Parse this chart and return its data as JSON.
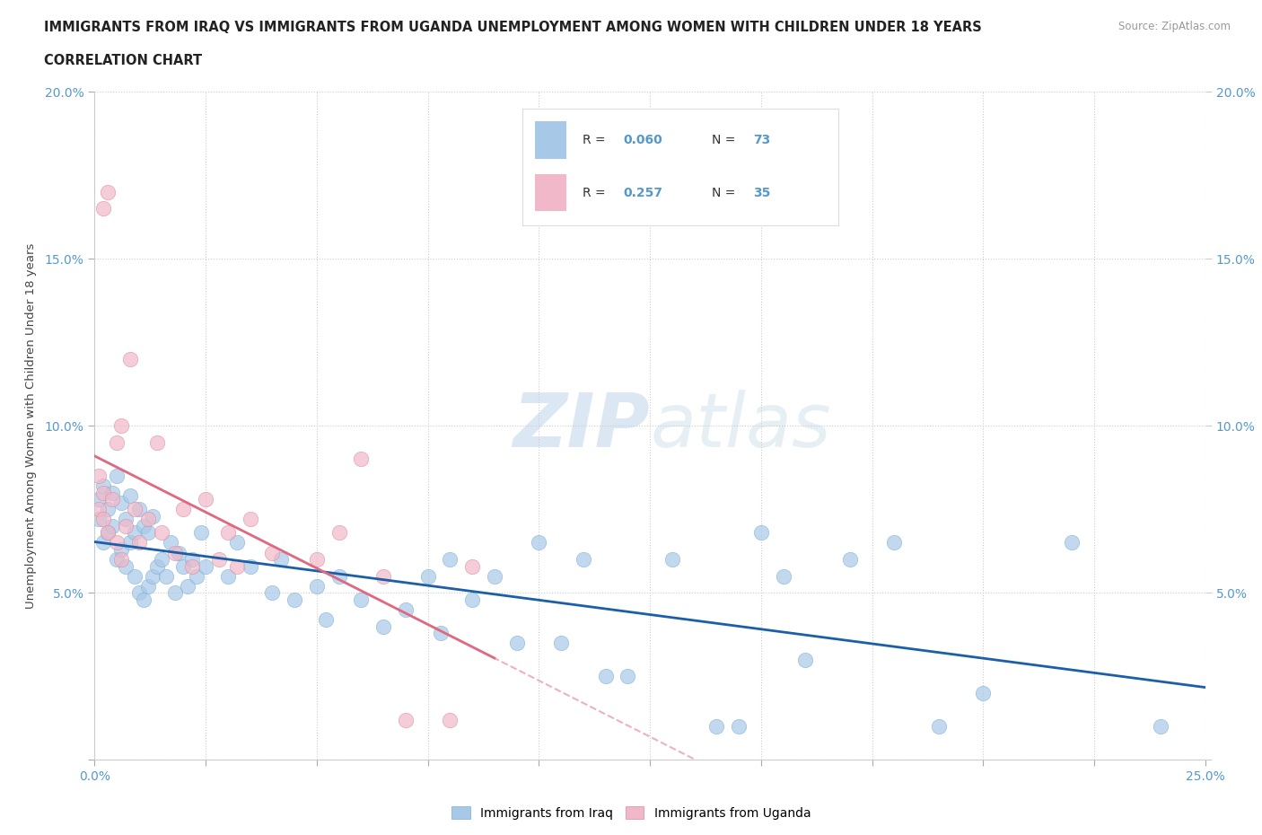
{
  "title_line1": "IMMIGRANTS FROM IRAQ VS IMMIGRANTS FROM UGANDA UNEMPLOYMENT AMONG WOMEN WITH CHILDREN UNDER 18 YEARS",
  "title_line2": "CORRELATION CHART",
  "source": "Source: ZipAtlas.com",
  "ylabel": "Unemployment Among Women with Children Under 18 years",
  "xlim": [
    0.0,
    0.25
  ],
  "ylim": [
    0.0,
    0.2
  ],
  "iraq_color": "#a8c8e8",
  "iraq_edge_color": "#7aafd4",
  "uganda_color": "#f0b8c8",
  "uganda_edge_color": "#e08898",
  "iraq_R": 0.06,
  "iraq_N": 73,
  "uganda_R": 0.257,
  "uganda_N": 35,
  "iraq_line_color": "#1a5fa8",
  "uganda_line_color": "#e06880",
  "uganda_dashed_color": "#e8a0b0",
  "tick_color": "#5599cc",
  "watermark_color": "#ccddf0",
  "iraq_x": [
    0.001,
    0.001,
    0.002,
    0.002,
    0.003,
    0.003,
    0.004,
    0.004,
    0.005,
    0.005,
    0.006,
    0.006,
    0.007,
    0.007,
    0.008,
    0.008,
    0.009,
    0.009,
    0.01,
    0.01,
    0.011,
    0.011,
    0.012,
    0.012,
    0.013,
    0.013,
    0.014,
    0.015,
    0.016,
    0.017,
    0.018,
    0.019,
    0.02,
    0.021,
    0.022,
    0.023,
    0.024,
    0.025,
    0.03,
    0.032,
    0.035,
    0.04,
    0.042,
    0.045,
    0.05,
    0.052,
    0.055,
    0.06,
    0.065,
    0.07,
    0.075,
    0.078,
    0.08,
    0.085,
    0.09,
    0.095,
    0.1,
    0.105,
    0.11,
    0.115,
    0.12,
    0.13,
    0.14,
    0.145,
    0.15,
    0.155,
    0.16,
    0.17,
    0.18,
    0.19,
    0.2,
    0.22,
    0.24
  ],
  "iraq_y": [
    0.072,
    0.078,
    0.065,
    0.082,
    0.068,
    0.075,
    0.07,
    0.08,
    0.06,
    0.085,
    0.063,
    0.077,
    0.058,
    0.072,
    0.065,
    0.079,
    0.055,
    0.068,
    0.05,
    0.075,
    0.048,
    0.07,
    0.052,
    0.068,
    0.055,
    0.073,
    0.058,
    0.06,
    0.055,
    0.065,
    0.05,
    0.062,
    0.058,
    0.052,
    0.06,
    0.055,
    0.068,
    0.058,
    0.055,
    0.065,
    0.058,
    0.05,
    0.06,
    0.048,
    0.052,
    0.042,
    0.055,
    0.048,
    0.04,
    0.045,
    0.055,
    0.038,
    0.06,
    0.048,
    0.055,
    0.035,
    0.065,
    0.035,
    0.06,
    0.025,
    0.025,
    0.06,
    0.01,
    0.01,
    0.068,
    0.055,
    0.03,
    0.06,
    0.065,
    0.01,
    0.02,
    0.065,
    0.01
  ],
  "uganda_x": [
    0.001,
    0.001,
    0.002,
    0.002,
    0.002,
    0.003,
    0.003,
    0.004,
    0.005,
    0.005,
    0.006,
    0.006,
    0.007,
    0.008,
    0.009,
    0.01,
    0.012,
    0.014,
    0.015,
    0.018,
    0.02,
    0.022,
    0.025,
    0.028,
    0.03,
    0.032,
    0.035,
    0.04,
    0.05,
    0.055,
    0.06,
    0.065,
    0.07,
    0.08,
    0.085
  ],
  "uganda_y": [
    0.075,
    0.085,
    0.072,
    0.08,
    0.165,
    0.068,
    0.17,
    0.078,
    0.065,
    0.095,
    0.06,
    0.1,
    0.07,
    0.12,
    0.075,
    0.065,
    0.072,
    0.095,
    0.068,
    0.062,
    0.075,
    0.058,
    0.078,
    0.06,
    0.068,
    0.058,
    0.072,
    0.062,
    0.06,
    0.068,
    0.09,
    0.055,
    0.012,
    0.012,
    0.058
  ]
}
